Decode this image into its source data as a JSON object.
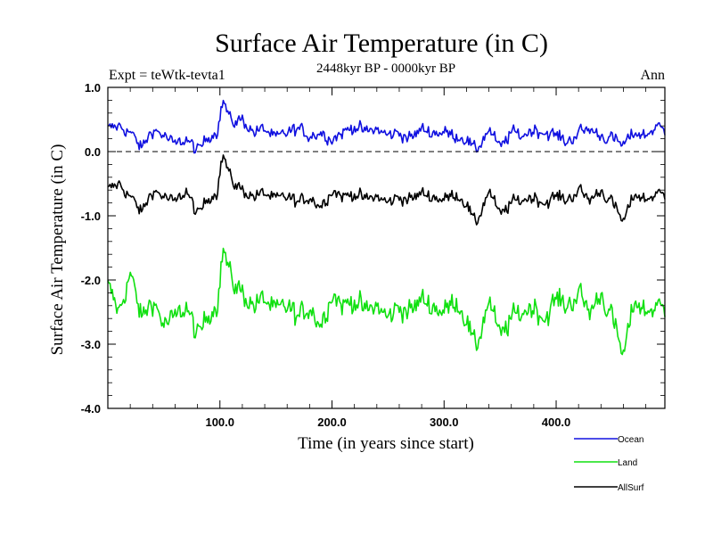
{
  "chart_data": {
    "type": "line",
    "title": "Surface Air Temperature (in C)",
    "subtitle": "2448kyr BP - 0000kyr BP",
    "left_label": "Expt = teWtk-tevta1",
    "right_label": "Ann",
    "xlabel": "Time (in years since start)",
    "ylabel": "Surface Air Temperature (in C)",
    "xlim": [
      0,
      497
    ],
    "ylim": [
      -4.0,
      1.0
    ],
    "x_ticks": [
      {
        "value": 100,
        "label": "100.0"
      },
      {
        "value": 200,
        "label": "200.0"
      },
      {
        "value": 300,
        "label": "300.0"
      },
      {
        "value": 400,
        "label": "400.0"
      }
    ],
    "y_ticks": [
      {
        "value": 1.0,
        "label": "1.0"
      },
      {
        "value": 0.0,
        "label": "0.0"
      },
      {
        "value": -1.0,
        "label": "-1.0"
      },
      {
        "value": -2.0,
        "label": "-2.0"
      },
      {
        "value": -3.0,
        "label": "-3.0"
      },
      {
        "value": -4.0,
        "label": "-4.0"
      }
    ],
    "zero_line": 0.0,
    "legend_position": "bottom-right",
    "series": [
      {
        "name": "Ocean",
        "color": "#1010e0",
        "x": [
          0,
          10,
          20,
          30,
          40,
          50,
          60,
          70,
          80,
          90,
          97,
          100,
          103,
          110,
          120,
          130,
          140,
          150,
          160,
          170,
          180,
          190,
          200,
          210,
          220,
          230,
          240,
          250,
          260,
          270,
          280,
          290,
          300,
          310,
          320,
          328,
          340,
          350,
          360,
          370,
          380,
          390,
          400,
          410,
          420,
          430,
          440,
          450,
          460,
          470,
          480,
          490,
          497
        ],
        "values": [
          0.35,
          0.4,
          0.3,
          0.05,
          0.35,
          0.25,
          0.1,
          0.2,
          0.0,
          0.25,
          0.3,
          0.55,
          0.8,
          0.45,
          0.5,
          0.3,
          0.35,
          0.2,
          0.3,
          0.35,
          0.25,
          0.3,
          0.2,
          0.3,
          0.4,
          0.3,
          0.35,
          0.25,
          0.3,
          0.2,
          0.35,
          0.3,
          0.3,
          0.25,
          0.2,
          0.0,
          0.35,
          0.05,
          0.3,
          0.25,
          0.35,
          0.3,
          0.25,
          0.15,
          0.3,
          0.35,
          0.25,
          0.2,
          0.1,
          0.3,
          0.25,
          0.4,
          0.3
        ]
      },
      {
        "name": "Land",
        "color": "#10e010",
        "x": [
          0,
          10,
          20,
          30,
          40,
          50,
          60,
          70,
          80,
          90,
          97,
          100,
          103,
          110,
          120,
          130,
          140,
          150,
          160,
          170,
          180,
          190,
          200,
          210,
          220,
          230,
          240,
          250,
          260,
          270,
          280,
          290,
          300,
          310,
          320,
          328,
          340,
          350,
          360,
          370,
          380,
          390,
          400,
          410,
          420,
          430,
          440,
          450,
          460,
          470,
          480,
          490,
          497
        ],
        "values": [
          -2.1,
          -2.5,
          -1.9,
          -2.6,
          -2.3,
          -2.7,
          -2.6,
          -2.4,
          -2.9,
          -2.5,
          -2.4,
          -2.0,
          -1.5,
          -2.0,
          -2.2,
          -2.4,
          -2.3,
          -2.5,
          -2.4,
          -2.6,
          -2.4,
          -2.7,
          -2.2,
          -2.4,
          -2.3,
          -2.5,
          -2.4,
          -2.6,
          -2.4,
          -2.5,
          -2.3,
          -2.4,
          -2.5,
          -2.3,
          -2.6,
          -3.1,
          -2.3,
          -2.9,
          -2.6,
          -2.5,
          -2.4,
          -2.6,
          -2.3,
          -2.4,
          -2.2,
          -2.5,
          -2.2,
          -2.6,
          -3.2,
          -2.3,
          -2.5,
          -2.4,
          -2.5
        ]
      },
      {
        "name": "AllSurf",
        "color": "#000000",
        "x": [
          0,
          10,
          20,
          30,
          40,
          50,
          60,
          70,
          80,
          90,
          97,
          100,
          103,
          110,
          120,
          130,
          140,
          150,
          160,
          170,
          180,
          190,
          200,
          210,
          220,
          230,
          240,
          250,
          260,
          270,
          280,
          290,
          300,
          310,
          320,
          328,
          340,
          350,
          360,
          370,
          380,
          390,
          400,
          410,
          420,
          430,
          440,
          450,
          460,
          470,
          480,
          490,
          497
        ],
        "values": [
          -0.6,
          -0.5,
          -0.7,
          -0.95,
          -0.6,
          -0.7,
          -0.8,
          -0.6,
          -1.0,
          -0.7,
          -0.65,
          -0.3,
          -0.05,
          -0.45,
          -0.6,
          -0.7,
          -0.65,
          -0.75,
          -0.7,
          -0.8,
          -0.7,
          -0.85,
          -0.6,
          -0.7,
          -0.65,
          -0.75,
          -0.7,
          -0.8,
          -0.7,
          -0.75,
          -0.65,
          -0.7,
          -0.75,
          -0.65,
          -0.8,
          -1.15,
          -0.6,
          -1.0,
          -0.8,
          -0.75,
          -0.7,
          -0.8,
          -0.7,
          -0.75,
          -0.6,
          -0.75,
          -0.6,
          -0.8,
          -1.1,
          -0.65,
          -0.75,
          -0.65,
          -0.7
        ]
      }
    ]
  }
}
